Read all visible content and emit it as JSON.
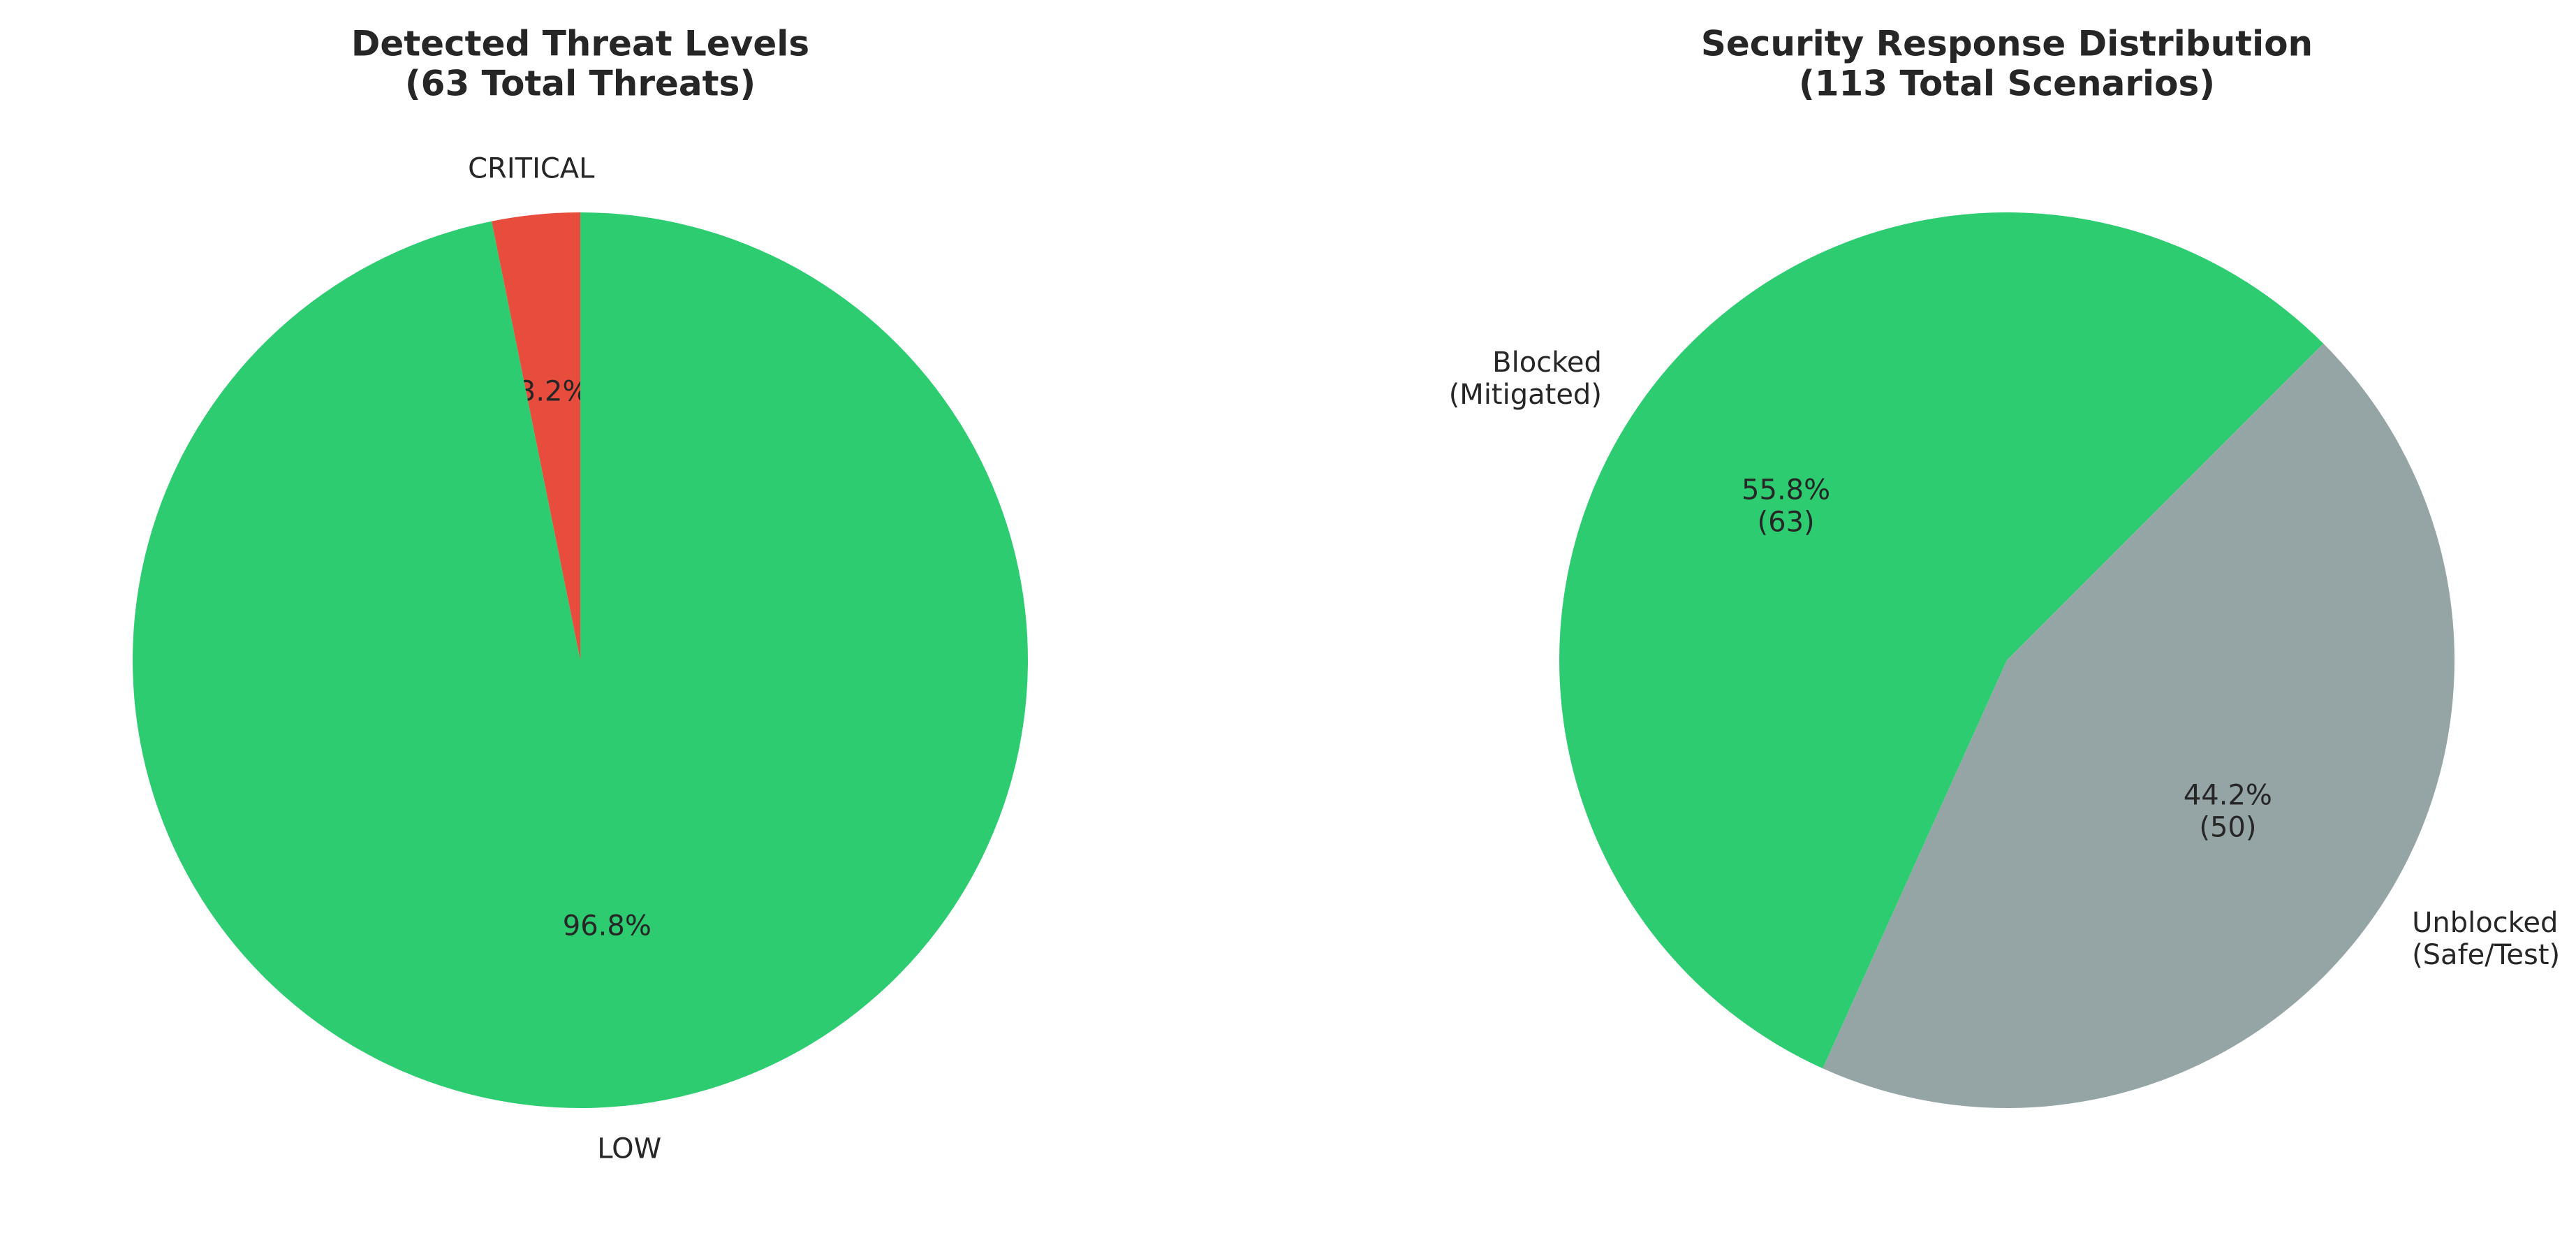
{
  "chart_data": [
    {
      "type": "pie",
      "title": "Detected Threat Levels\n(63 Total Threats)",
      "labels": [
        "CRITICAL",
        "LOW"
      ],
      "values": [
        2,
        61
      ],
      "percent_labels": [
        "3.2%",
        "96.8%"
      ],
      "colors": [
        "#e74c3c",
        "#2ecc71"
      ],
      "start_angle": 90,
      "direction": "counterclockwise"
    },
    {
      "type": "pie",
      "title": "Security Response Distribution\n(113 Total Scenarios)",
      "labels": [
        "Blocked\n(Mitigated)",
        "Unblocked\n(Safe/Test)"
      ],
      "values": [
        63,
        50
      ],
      "percent_labels": [
        "55.8%\n(63)",
        "44.2%\n(50)"
      ],
      "colors": [
        "#2ecc71",
        "#95a5a6"
      ],
      "start_angle": 45,
      "direction": "counterclockwise"
    }
  ]
}
